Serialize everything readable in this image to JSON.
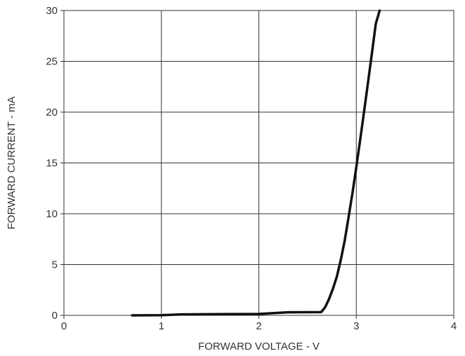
{
  "chart_data": {
    "type": "line",
    "title": "",
    "xlabel": "FORWARD VOLTAGE - V",
    "ylabel": "FORWARD CURRENT - mA",
    "xlim": [
      0,
      4
    ],
    "ylim": [
      0,
      30
    ],
    "xticks": [
      0,
      1,
      2,
      3,
      4
    ],
    "yticks": [
      0,
      5,
      10,
      15,
      20,
      25,
      30
    ],
    "xtick_labels": [
      "0",
      "1",
      "2",
      "3",
      "4"
    ],
    "ytick_labels": [
      "0",
      "5",
      "10",
      "15",
      "20",
      "25",
      "30"
    ],
    "grid": true,
    "legend": "none",
    "series": [
      {
        "color": "#111111",
        "x": [
          0.7,
          1.0,
          1.2,
          1.6,
          2.0,
          2.3,
          2.64,
          2.68,
          2.72,
          2.76,
          2.8,
          2.84,
          2.88,
          2.92,
          2.96,
          3.0,
          3.04,
          3.08,
          3.12,
          3.16,
          3.2,
          3.24
        ],
        "y": [
          0.0,
          0.02,
          0.1,
          0.12,
          0.14,
          0.3,
          0.32,
          0.8,
          1.6,
          2.6,
          3.8,
          5.4,
          7.3,
          9.6,
          12.0,
          14.6,
          17.3,
          20.1,
          22.9,
          25.8,
          28.7,
          30.0
        ]
      }
    ]
  }
}
